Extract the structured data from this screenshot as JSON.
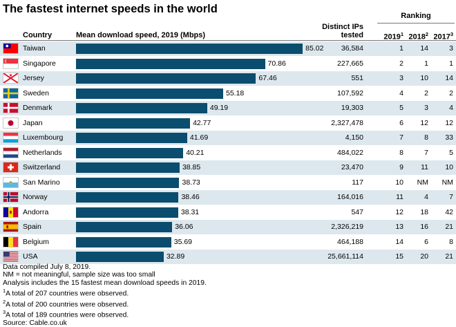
{
  "title": "The fastest internet speeds in the world",
  "headers": {
    "country": "Country",
    "speed": "Mean download speed, 2019 (Mbps)",
    "ips_line1": "Distinct IPs",
    "ips_line2": "tested",
    "ranking": "Ranking",
    "rank2019": "2019",
    "rank2019_sup": "1",
    "rank2018": "2018",
    "rank2018_sup": "2",
    "rank2017": "2017",
    "rank2017_sup": "3"
  },
  "chart_data": {
    "type": "bar",
    "title": "The fastest internet speeds in the world",
    "xlabel": "Mean download speed, 2019 (Mbps)",
    "categories": [
      "Taiwan",
      "Singapore",
      "Jersey",
      "Sweden",
      "Denmark",
      "Japan",
      "Luxembourg",
      "Netherlands",
      "Switzerland",
      "San Marino",
      "Norway",
      "Andorra",
      "Spain",
      "Belgium",
      "USA"
    ],
    "values": [
      85.02,
      70.86,
      67.46,
      55.18,
      49.19,
      42.77,
      41.69,
      40.21,
      38.85,
      38.73,
      38.46,
      38.31,
      36.06,
      35.69,
      32.89
    ],
    "value_labels": [
      "85.02",
      "70.86",
      "67.46",
      "55.18",
      "49.19",
      "42.77",
      "41.69",
      "40.21",
      "38.85",
      "38.73",
      "38.46",
      "38.31",
      "36.06",
      "35.69",
      "32.89"
    ],
    "xlim": [
      0,
      100
    ],
    "bar_color": "#0a4d6e",
    "alt_row_color": "#dde8ee",
    "grid": false,
    "legend": "none"
  },
  "rows": [
    {
      "country": "Taiwan",
      "flag": "taiwan-flag",
      "ips": "36,584",
      "r2019": "1",
      "r2018": "14",
      "r2017": "3"
    },
    {
      "country": "Singapore",
      "flag": "singapore-flag",
      "ips": "227,665",
      "r2019": "2",
      "r2018": "1",
      "r2017": "1"
    },
    {
      "country": "Jersey",
      "flag": "jersey-flag",
      "ips": "551",
      "r2019": "3",
      "r2018": "10",
      "r2017": "14"
    },
    {
      "country": "Sweden",
      "flag": "sweden-flag",
      "ips": "107,592",
      "r2019": "4",
      "r2018": "2",
      "r2017": "2"
    },
    {
      "country": "Denmark",
      "flag": "denmark-flag",
      "ips": "19,303",
      "r2019": "5",
      "r2018": "3",
      "r2017": "4"
    },
    {
      "country": "Japan",
      "flag": "japan-flag",
      "ips": "2,327,478",
      "r2019": "6",
      "r2018": "12",
      "r2017": "12"
    },
    {
      "country": "Luxembourg",
      "flag": "luxembourg-flag",
      "ips": "4,150",
      "r2019": "7",
      "r2018": "8",
      "r2017": "33"
    },
    {
      "country": "Netherlands",
      "flag": "netherlands-flag",
      "ips": "484,022",
      "r2019": "8",
      "r2018": "7",
      "r2017": "5"
    },
    {
      "country": "Switzerland",
      "flag": "switzerland-flag",
      "ips": "23,470",
      "r2019": "9",
      "r2018": "11",
      "r2017": "10"
    },
    {
      "country": "San Marino",
      "flag": "san-marino-flag",
      "ips": "117",
      "r2019": "10",
      "r2018": "NM",
      "r2017": "NM"
    },
    {
      "country": "Norway",
      "flag": "norway-flag",
      "ips": "164,016",
      "r2019": "11",
      "r2018": "4",
      "r2017": "7"
    },
    {
      "country": "Andorra",
      "flag": "andorra-flag",
      "ips": "547",
      "r2019": "12",
      "r2018": "18",
      "r2017": "42"
    },
    {
      "country": "Spain",
      "flag": "spain-flag",
      "ips": "2,326,219",
      "r2019": "13",
      "r2018": "16",
      "r2017": "21"
    },
    {
      "country": "Belgium",
      "flag": "belgium-flag",
      "ips": "464,188",
      "r2019": "14",
      "r2018": "6",
      "r2017": "8"
    },
    {
      "country": "USA",
      "flag": "usa-flag",
      "ips": "25,661,114",
      "r2019": "15",
      "r2018": "20",
      "r2017": "21"
    }
  ],
  "notes": {
    "line1": "Data compiled July 8, 2019.",
    "line2": "NM = not meaningful, sample size was too small",
    "line3": "Analysis includes the 15 fastest mean download speeds in 2019.",
    "fn1_sup": "1",
    "fn1": "A total of 207 countries were observed.",
    "fn2_sup": "2",
    "fn2": "A total of 200 countries were observed.",
    "fn3_sup": "3",
    "fn3": "A total of 189 countries were observed.",
    "source": "Source: Cable.co.uk"
  }
}
